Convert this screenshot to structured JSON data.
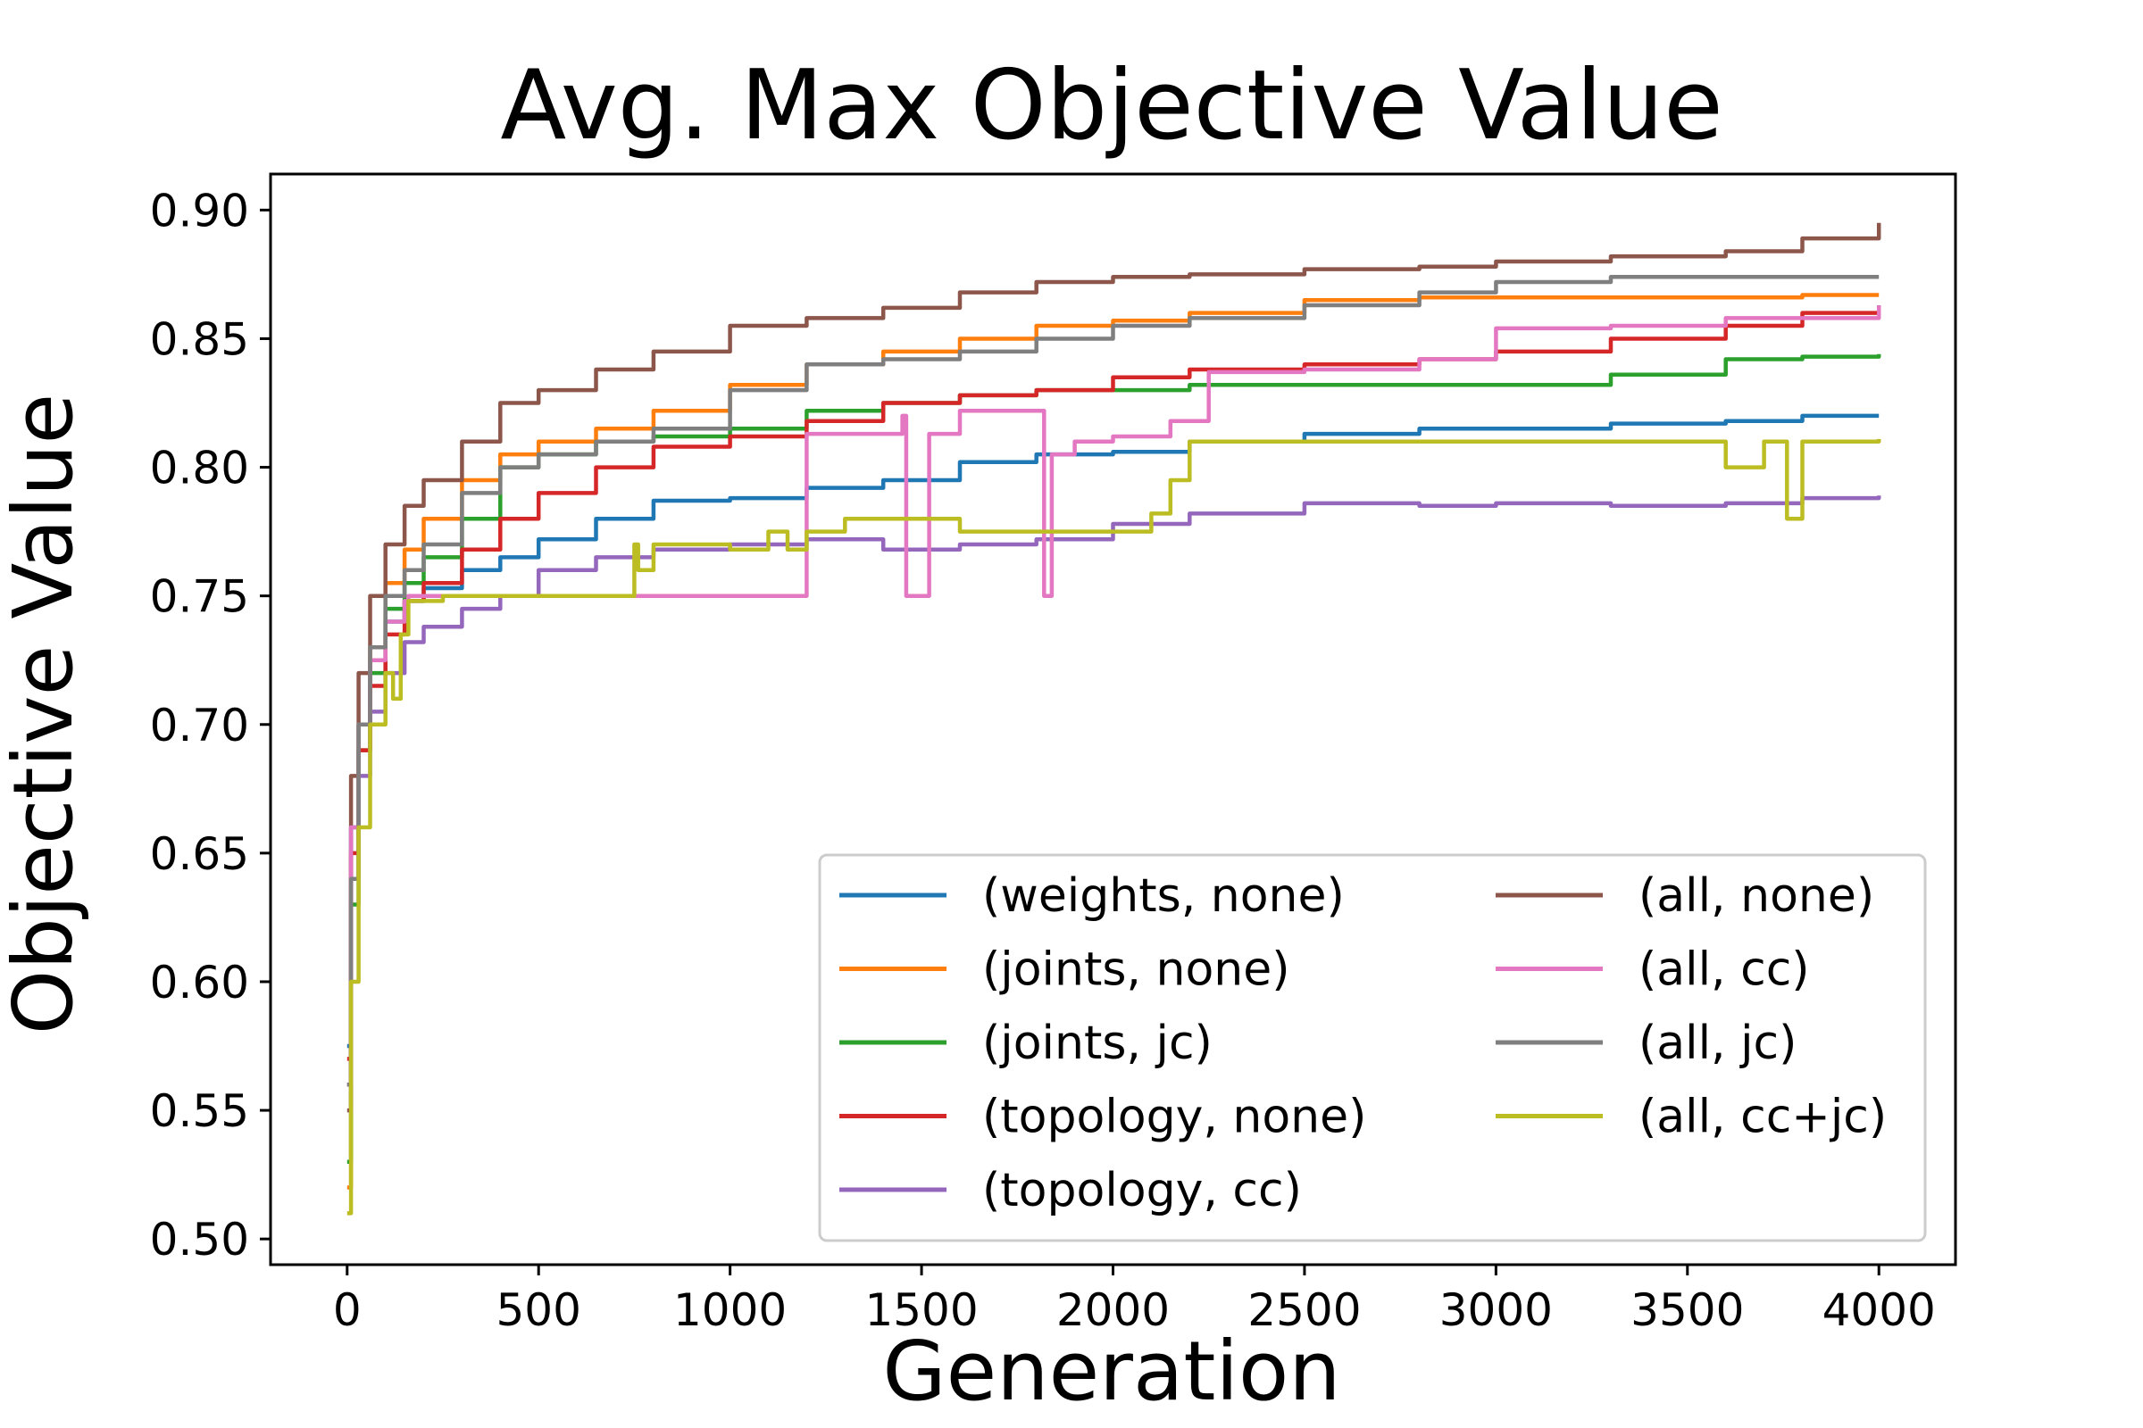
{
  "chart_data": {
    "type": "line",
    "title": "Avg. Max Objective Value",
    "xlabel": "Generation",
    "ylabel": "Objective Value",
    "xlim": [
      -200,
      4200
    ],
    "ylim": [
      0.49,
      0.914
    ],
    "x_ticks": [
      0,
      500,
      1000,
      1500,
      2000,
      2500,
      3000,
      3500,
      4000
    ],
    "y_ticks": [
      0.5,
      0.55,
      0.6,
      0.65,
      0.7,
      0.75,
      0.8,
      0.85,
      0.9
    ],
    "x_tick_labels": [
      "0",
      "500",
      "1000",
      "1500",
      "2000",
      "2500",
      "3000",
      "3500",
      "4000"
    ],
    "y_tick_labels": [
      "0.50",
      "0.55",
      "0.60",
      "0.65",
      "0.70",
      "0.75",
      "0.80",
      "0.85",
      "0.90"
    ],
    "grid": false,
    "legend": {
      "placement": "lower-right",
      "columns": 2
    },
    "series": [
      {
        "name": "(weights, none)",
        "color": "#1f77b4",
        "x": [
          0,
          10,
          30,
          60,
          100,
          150,
          200,
          300,
          400,
          500,
          650,
          800,
          1000,
          1200,
          1400,
          1600,
          1800,
          2000,
          2200,
          2500,
          2800,
          3000,
          3300,
          3600,
          3800,
          4000
        ],
        "y": [
          0.575,
          0.66,
          0.7,
          0.725,
          0.74,
          0.748,
          0.753,
          0.76,
          0.765,
          0.772,
          0.78,
          0.787,
          0.788,
          0.792,
          0.795,
          0.802,
          0.805,
          0.806,
          0.81,
          0.813,
          0.815,
          0.815,
          0.817,
          0.818,
          0.82,
          0.82
        ]
      },
      {
        "name": "(joints, none)",
        "color": "#ff7f0e",
        "x": [
          0,
          10,
          30,
          60,
          100,
          150,
          200,
          300,
          400,
          500,
          650,
          800,
          1000,
          1200,
          1400,
          1600,
          1800,
          2000,
          2200,
          2500,
          2800,
          3000,
          3300,
          3600,
          3800,
          4000
        ],
        "y": [
          0.52,
          0.64,
          0.7,
          0.73,
          0.755,
          0.768,
          0.78,
          0.795,
          0.805,
          0.81,
          0.815,
          0.822,
          0.832,
          0.84,
          0.845,
          0.85,
          0.855,
          0.857,
          0.86,
          0.865,
          0.866,
          0.866,
          0.866,
          0.866,
          0.867,
          0.867
        ]
      },
      {
        "name": "(joints, jc)",
        "color": "#2ca02c",
        "x": [
          0,
          10,
          30,
          60,
          100,
          150,
          200,
          300,
          400,
          500,
          650,
          800,
          1000,
          1200,
          1400,
          1600,
          1800,
          2000,
          2200,
          2500,
          2800,
          3000,
          3300,
          3600,
          3800,
          4000
        ],
        "y": [
          0.53,
          0.63,
          0.69,
          0.72,
          0.745,
          0.755,
          0.765,
          0.78,
          0.8,
          0.805,
          0.81,
          0.812,
          0.815,
          0.822,
          0.825,
          0.828,
          0.83,
          0.83,
          0.832,
          0.832,
          0.832,
          0.832,
          0.836,
          0.842,
          0.843,
          0.844
        ]
      },
      {
        "name": "(topology, none)",
        "color": "#d62728",
        "x": [
          0,
          10,
          30,
          60,
          100,
          150,
          200,
          300,
          400,
          500,
          650,
          800,
          1000,
          1200,
          1400,
          1600,
          1800,
          2000,
          2200,
          2500,
          2800,
          3000,
          3300,
          3600,
          3800,
          4000
        ],
        "y": [
          0.57,
          0.65,
          0.69,
          0.715,
          0.735,
          0.748,
          0.755,
          0.768,
          0.78,
          0.79,
          0.8,
          0.808,
          0.812,
          0.818,
          0.825,
          0.828,
          0.83,
          0.835,
          0.838,
          0.84,
          0.842,
          0.845,
          0.85,
          0.855,
          0.86,
          0.86
        ]
      },
      {
        "name": "(topology, cc)",
        "color": "#9467bd",
        "x": [
          0,
          10,
          30,
          60,
          100,
          150,
          200,
          300,
          400,
          500,
          650,
          800,
          1000,
          1200,
          1400,
          1600,
          1800,
          2000,
          2200,
          2500,
          2800,
          3000,
          3300,
          3600,
          3800,
          4000
        ],
        "y": [
          0.56,
          0.64,
          0.68,
          0.705,
          0.72,
          0.732,
          0.738,
          0.745,
          0.75,
          0.76,
          0.765,
          0.768,
          0.77,
          0.772,
          0.768,
          0.77,
          0.772,
          0.778,
          0.782,
          0.786,
          0.785,
          0.786,
          0.785,
          0.786,
          0.788,
          0.789
        ]
      },
      {
        "name": "(all, none)",
        "color": "#8c564b",
        "x": [
          0,
          10,
          30,
          60,
          100,
          150,
          200,
          300,
          400,
          500,
          650,
          800,
          1000,
          1200,
          1400,
          1600,
          1800,
          2000,
          2200,
          2500,
          2800,
          3000,
          3300,
          3600,
          3800,
          4000
        ],
        "y": [
          0.55,
          0.68,
          0.72,
          0.75,
          0.77,
          0.785,
          0.795,
          0.81,
          0.825,
          0.83,
          0.838,
          0.845,
          0.855,
          0.858,
          0.862,
          0.868,
          0.872,
          0.874,
          0.875,
          0.877,
          0.878,
          0.88,
          0.882,
          0.884,
          0.889,
          0.895
        ]
      },
      {
        "name": "(all, cc)",
        "color": "#e377c2",
        "x": [
          0,
          10,
          30,
          60,
          100,
          150,
          160,
          500,
          800,
          1000,
          1199,
          1200,
          1440,
          1450,
          1460,
          1519,
          1520,
          1580,
          1600,
          1780,
          1819,
          1820,
          1830,
          1840,
          1900,
          2000,
          2150,
          2250,
          2500,
          2800,
          3000,
          3300,
          3600,
          4000
        ],
        "y": [
          0.56,
          0.66,
          0.7,
          0.725,
          0.74,
          0.748,
          0.75,
          0.75,
          0.75,
          0.75,
          0.75,
          0.813,
          0.813,
          0.82,
          0.75,
          0.75,
          0.813,
          0.813,
          0.822,
          0.822,
          0.822,
          0.75,
          0.75,
          0.805,
          0.81,
          0.812,
          0.818,
          0.837,
          0.838,
          0.842,
          0.854,
          0.855,
          0.858,
          0.863
        ]
      },
      {
        "name": "(all, jc)",
        "color": "#7f7f7f",
        "x": [
          0,
          10,
          30,
          60,
          100,
          150,
          200,
          300,
          400,
          500,
          650,
          800,
          1000,
          1200,
          1400,
          1600,
          1800,
          2000,
          2200,
          2500,
          2800,
          3000,
          3300,
          3600,
          3800,
          4000
        ],
        "y": [
          0.56,
          0.64,
          0.7,
          0.73,
          0.75,
          0.76,
          0.77,
          0.79,
          0.8,
          0.805,
          0.81,
          0.815,
          0.83,
          0.84,
          0.842,
          0.845,
          0.85,
          0.855,
          0.858,
          0.863,
          0.868,
          0.872,
          0.874,
          0.874,
          0.874,
          0.874
        ]
      },
      {
        "name": "(all, cc+jc)",
        "color": "#bcbd22",
        "x": [
          0,
          10,
          30,
          60,
          100,
          120,
          140,
          160,
          250,
          400,
          500,
          700,
          750,
          760,
          800,
          900,
          1000,
          1100,
          1150,
          1200,
          1300,
          1400,
          1500,
          1600,
          1800,
          2000,
          2100,
          2150,
          2200,
          2500,
          2800,
          3000,
          3300,
          3500,
          3600,
          3680,
          3700,
          3760,
          3800,
          4000
        ],
        "y": [
          0.51,
          0.6,
          0.66,
          0.7,
          0.72,
          0.71,
          0.735,
          0.748,
          0.75,
          0.75,
          0.75,
          0.75,
          0.77,
          0.76,
          0.77,
          0.77,
          0.768,
          0.775,
          0.768,
          0.775,
          0.78,
          0.78,
          0.78,
          0.775,
          0.775,
          0.775,
          0.782,
          0.795,
          0.81,
          0.81,
          0.81,
          0.81,
          0.81,
          0.81,
          0.8,
          0.8,
          0.81,
          0.78,
          0.81,
          0.811
        ]
      }
    ]
  }
}
